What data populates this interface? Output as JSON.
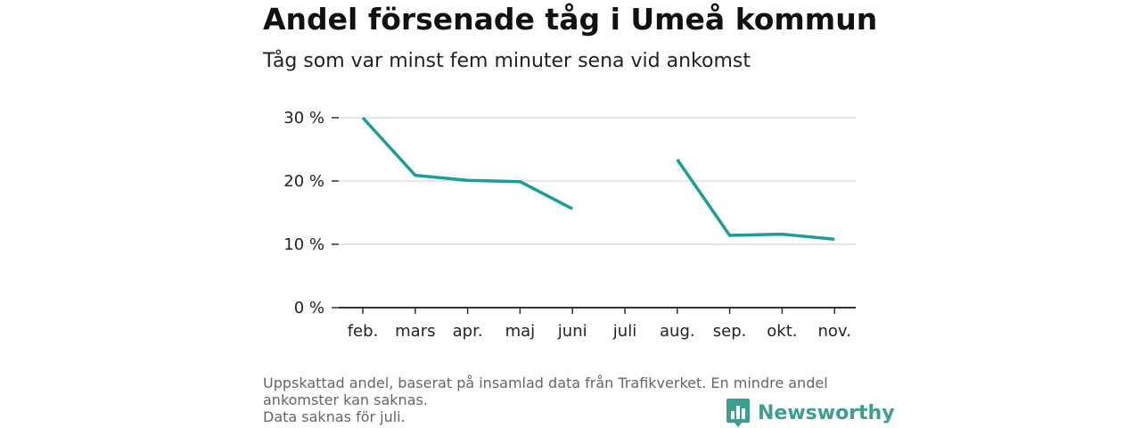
{
  "title": "Andel försenade tåg i Umeå kommun",
  "subtitle": "Tåg som var minst fem minuter sena vid ankomst",
  "footnote": {
    "line1": "Uppskattad andel, baserat på insamlad data från Trafikverket. En mindre andel",
    "line2": "ankomster kan saknas.",
    "line3": "Data saknas för juli."
  },
  "brand": {
    "name": "Newsworthy",
    "icon": "bar-chart-logo-icon"
  },
  "colors": {
    "line": "#1a9e96",
    "grid": "#dddddd",
    "axis": "#333333",
    "brand": "#3d9e8f"
  },
  "chart_data": {
    "type": "line",
    "title": "Andel försenade tåg i Umeå kommun",
    "subtitle": "Tåg som var minst fem minuter sena vid ankomst",
    "categories": [
      "feb.",
      "mars",
      "apr.",
      "maj",
      "juni",
      "juli",
      "aug.",
      "sep.",
      "okt.",
      "nov."
    ],
    "series": [
      {
        "values": [
          30,
          20.9,
          20.1,
          19.9,
          15.6,
          null,
          23.4,
          11.4,
          11.6,
          10.8
        ]
      }
    ],
    "ylim": [
      0,
      30
    ],
    "yticks": [
      0,
      10,
      20,
      30
    ],
    "ytick_labels": [
      "0 %",
      "10 %",
      "20 %",
      "30 %"
    ],
    "grid": true,
    "legend": "none"
  }
}
